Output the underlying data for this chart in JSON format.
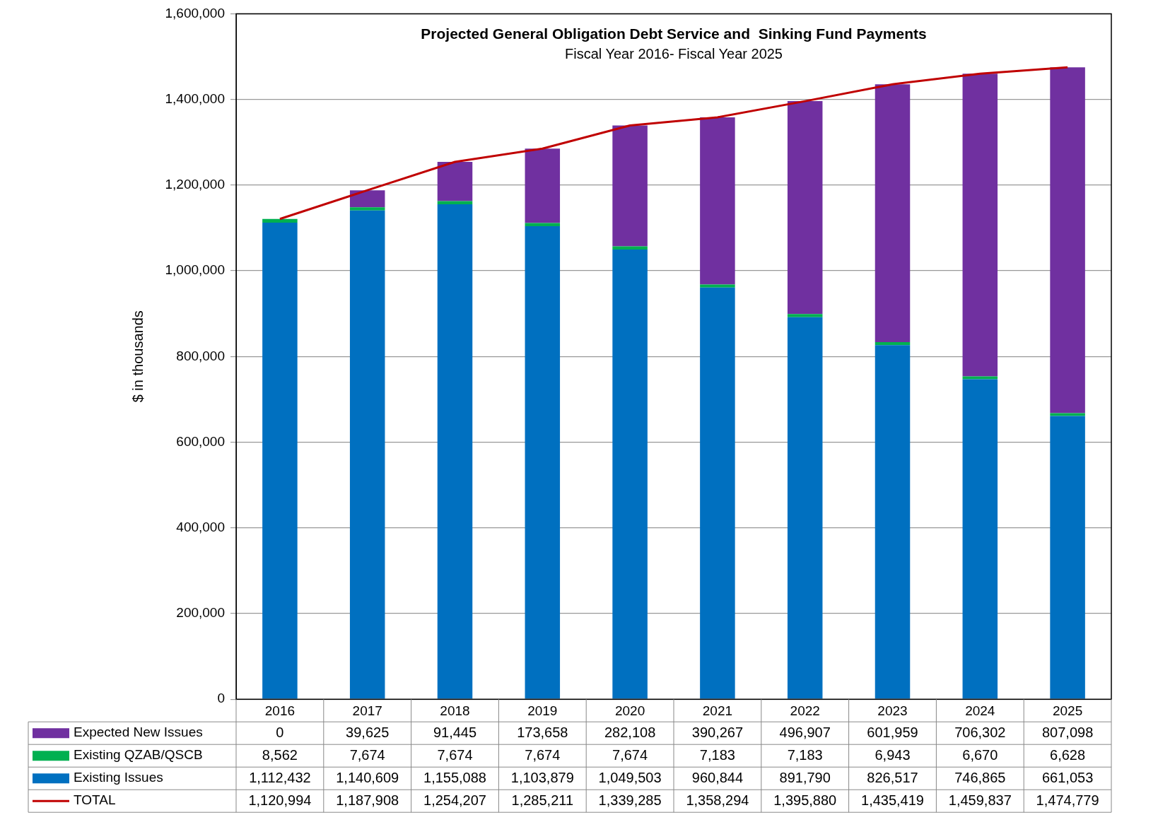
{
  "chart_data": {
    "type": "bar",
    "title": "Projected General Obligation Debt Service and  Sinking Fund Payments",
    "subtitle": "Fiscal Year 2016- Fiscal Year 2025",
    "ylabel": "$ in thousands",
    "categories": [
      "2016",
      "2017",
      "2018",
      "2019",
      "2020",
      "2021",
      "2022",
      "2023",
      "2024",
      "2025"
    ],
    "stacked": true,
    "ylim": [
      0,
      1600000
    ],
    "yticks": [
      {
        "value": 0,
        "label": "0"
      },
      {
        "value": 200000,
        "label": "200,000"
      },
      {
        "value": 400000,
        "label": "400,000"
      },
      {
        "value": 600000,
        "label": "600,000"
      },
      {
        "value": 800000,
        "label": "800,000"
      },
      {
        "value": 1000000,
        "label": "1,000,000"
      },
      {
        "value": 1200000,
        "label": "1,200,000"
      },
      {
        "value": 1400000,
        "label": "1,400,000"
      },
      {
        "value": 1600000,
        "label": "1,600,000"
      }
    ],
    "grid": "y",
    "legend": "bottom left",
    "marker": "none",
    "series": [
      {
        "name": "Existing Issues",
        "color": "#0070c0",
        "values": [
          1112432,
          1140609,
          1155088,
          1103879,
          1049503,
          960844,
          891790,
          826517,
          746865,
          661053
        ],
        "value_labels": [
          "1,112,432",
          "1,140,609",
          "1,155,088",
          "1,103,879",
          "1,049,503",
          "960,844",
          "891,790",
          "826,517",
          "746,865",
          "661,053"
        ]
      },
      {
        "name": "Existing QZAB/QSCB",
        "color": "#00b050",
        "values": [
          8562,
          7674,
          7674,
          7674,
          7674,
          7183,
          7183,
          6943,
          6670,
          6628
        ],
        "value_labels": [
          "8,562",
          "7,674",
          "7,674",
          "7,674",
          "7,674",
          "7,183",
          "7,183",
          "6,943",
          "6,670",
          "6,628"
        ]
      },
      {
        "name": "Expected New Issues",
        "color": "#7030a0",
        "values": [
          0,
          39625,
          91445,
          173658,
          282108,
          390267,
          496907,
          601959,
          706302,
          807098
        ],
        "value_labels": [
          "0",
          "39,625",
          "91,445",
          "173,658",
          "282,108",
          "390,267",
          "496,907",
          "601,959",
          "706,302",
          "807,098"
        ]
      },
      {
        "name": "TOTAL",
        "type": "line",
        "color": "#c00000",
        "values": [
          1120994,
          1187908,
          1254207,
          1285211,
          1339285,
          1358294,
          1395880,
          1435419,
          1459837,
          1474779
        ],
        "value_labels": [
          "1,120,994",
          "1,187,908",
          "1,254,207",
          "1,285,211",
          "1,339,285",
          "1,358,294",
          "1,395,880",
          "1,435,419",
          "1,459,837",
          "1,474,779"
        ]
      }
    ]
  }
}
